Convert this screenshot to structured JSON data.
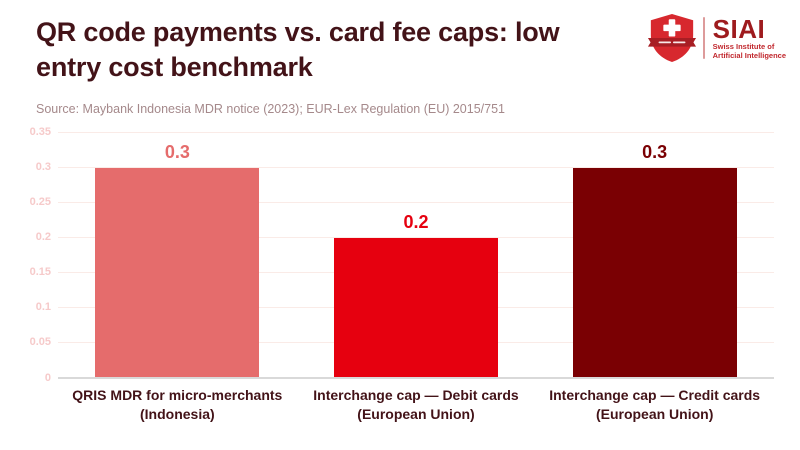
{
  "header": {
    "title_line1": "QR code payments vs. card fee caps: low",
    "title_line2": "entry cost benchmark",
    "source": "Source: Maybank Indonesia MDR notice (2023); EUR-Lex Regulation (EU) 2015/751"
  },
  "logo": {
    "name": "SIAI",
    "subtitle_line1": "Swiss Institute of",
    "subtitle_line2": "Artificial Intelligence"
  },
  "chart_data": {
    "type": "bar",
    "title": "QR code payments vs. card fee caps: low entry cost benchmark",
    "categories": [
      [
        "QRIS MDR for micro-merchants",
        "(Indonesia)"
      ],
      [
        "Interchange cap — Debit cards",
        "(European Union)"
      ],
      [
        "Interchange cap — Credit cards",
        "(European Union)"
      ]
    ],
    "values": [
      0.3,
      0.2,
      0.3
    ],
    "value_labels": [
      "0.3",
      "0.2",
      "0.3"
    ],
    "bar_colors": [
      "#e56c6c",
      "#e6000f",
      "#7a0003"
    ],
    "value_label_colors": [
      "#e56c6c",
      "#e6000f",
      "#7a0003"
    ],
    "y_ticks": [
      0,
      0.05,
      0.1,
      0.15,
      0.2,
      0.25,
      0.3,
      0.35
    ],
    "y_tick_labels": [
      "0",
      "0.05",
      "0.1",
      "0.15",
      "0.2",
      "0.25",
      "0.3",
      "0.35"
    ],
    "ylim": [
      0,
      0.35
    ],
    "grid": true,
    "legend": false,
    "xlabel": "",
    "ylabel": ""
  },
  "colors": {
    "title_text": "#431318",
    "source_text": "#a5898b",
    "tick_label": "#f6caca",
    "gridline": "#faebe7",
    "axis_line": "#d9d9d9",
    "category_label": "#431318",
    "logo_shield_red": "#d7282e",
    "logo_ribbon_red": "#a81e24",
    "logo_wordmark_red": "#9e1b1e",
    "logo_subtitle_red": "#c1272d"
  }
}
